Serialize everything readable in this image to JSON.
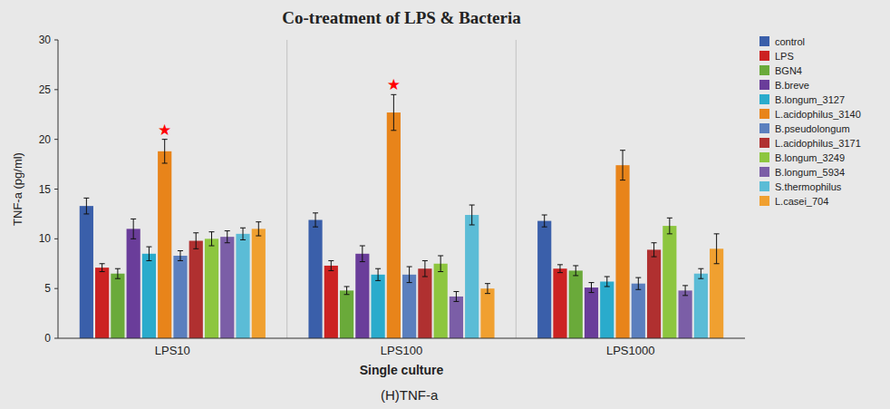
{
  "chart_data": {
    "type": "bar",
    "title": "Co-treatment of LPS & Bacteria",
    "x_label": "Single culture",
    "y_label": "TNF-a (pg/ml)",
    "categories": [
      "LPS10",
      "LPS100",
      "LPS1000"
    ],
    "series": [
      {
        "name": "control",
        "color": "#3a5faa",
        "values": [
          13.3,
          11.9,
          11.8
        ],
        "errors": [
          0.8,
          0.7,
          0.6
        ]
      },
      {
        "name": "LPS",
        "color": "#cc2222",
        "values": [
          7.1,
          7.3,
          7.0
        ],
        "errors": [
          0.4,
          0.5,
          0.4
        ]
      },
      {
        "name": "BGN4",
        "color": "#6aaa3a",
        "values": [
          6.5,
          4.8,
          6.8
        ],
        "errors": [
          0.5,
          0.4,
          0.5
        ]
      },
      {
        "name": "B.breve",
        "color": "#6a3d9a",
        "values": [
          11.0,
          8.5,
          5.1
        ],
        "errors": [
          1.0,
          0.8,
          0.5
        ]
      },
      {
        "name": "B.longum_3127",
        "color": "#2aabcc",
        "values": [
          8.5,
          6.4,
          5.7
        ],
        "errors": [
          0.7,
          0.6,
          0.5
        ]
      },
      {
        "name": "L.acidophilus_3140",
        "color": "#e8841a",
        "values": [
          18.8,
          22.7,
          17.4
        ],
        "errors": [
          1.2,
          1.8,
          1.5
        ]
      },
      {
        "name": "B.pseudolongum",
        "color": "#5b7fbe",
        "values": [
          8.3,
          6.4,
          5.5
        ],
        "errors": [
          0.5,
          0.8,
          0.6
        ]
      },
      {
        "name": "L.acidophilus_3171",
        "color": "#b03030",
        "values": [
          9.8,
          7.0,
          8.9
        ],
        "errors": [
          0.8,
          0.8,
          0.7
        ]
      },
      {
        "name": "B.longum_3249",
        "color": "#8dc63f",
        "values": [
          10.0,
          7.5,
          11.3
        ],
        "errors": [
          0.7,
          0.8,
          0.8
        ]
      },
      {
        "name": "B.longum_5934",
        "color": "#7b5ea7",
        "values": [
          10.2,
          4.2,
          4.8
        ],
        "errors": [
          0.6,
          0.5,
          0.5
        ]
      },
      {
        "name": "S.thermophilus",
        "color": "#5bbcd6",
        "values": [
          10.5,
          12.4,
          6.5
        ],
        "errors": [
          0.6,
          1.0,
          0.5
        ]
      },
      {
        "name": "L.casei_704",
        "color": "#f0a030",
        "values": [
          11.0,
          5.0,
          9.0
        ],
        "errors": [
          0.7,
          0.5,
          1.5
        ]
      }
    ],
    "ylim": [
      0,
      30
    ],
    "yticks": [
      0,
      5,
      10,
      15,
      20,
      25,
      30
    ],
    "grid": false,
    "legend": "right",
    "annotations": [
      {
        "text": "(H)TNF-a"
      },
      {
        "text": "★",
        "category": "LPS10",
        "series": "L.acidophilus_3140",
        "color": "red"
      },
      {
        "text": "★",
        "category": "LPS100",
        "series": "L.acidophilus_3140",
        "color": "red"
      }
    ]
  }
}
